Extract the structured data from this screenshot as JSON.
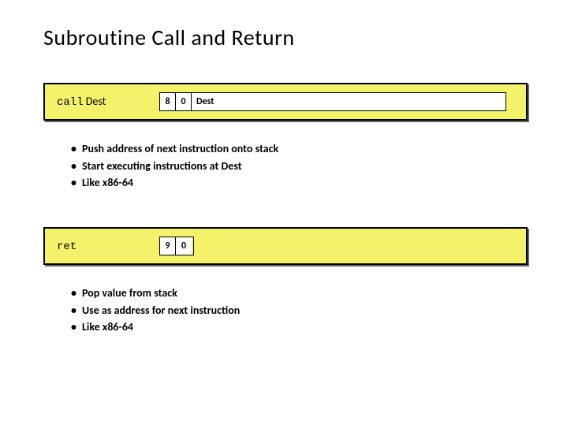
{
  "title": "Subroutine Call and Return",
  "colors": {
    "block_bg": "#f4f26a",
    "border": "#000000",
    "text": "#000000",
    "cell_bg": "#ffffff"
  },
  "typography": {
    "title_fontsize": 28,
    "body_fontsize": 14,
    "cell_fontsize": 12,
    "mono_family": "Courier New"
  },
  "instructions": [
    {
      "mnemonic_mono": "call",
      "mnemonic_arg": "Dest",
      "encoding": {
        "opcode": "8",
        "func": "0",
        "dest": "Dest"
      },
      "bullets": [
        "Push address of next instruction onto stack",
        "Start executing instructions at Dest",
        "Like x86-64"
      ]
    },
    {
      "mnemonic_mono": "ret",
      "mnemonic_arg": "",
      "encoding": {
        "opcode": "9",
        "func": "0",
        "dest": ""
      },
      "bullets": [
        "Pop value from stack",
        "Use as address for next instruction",
        "Like x86-64"
      ]
    }
  ]
}
